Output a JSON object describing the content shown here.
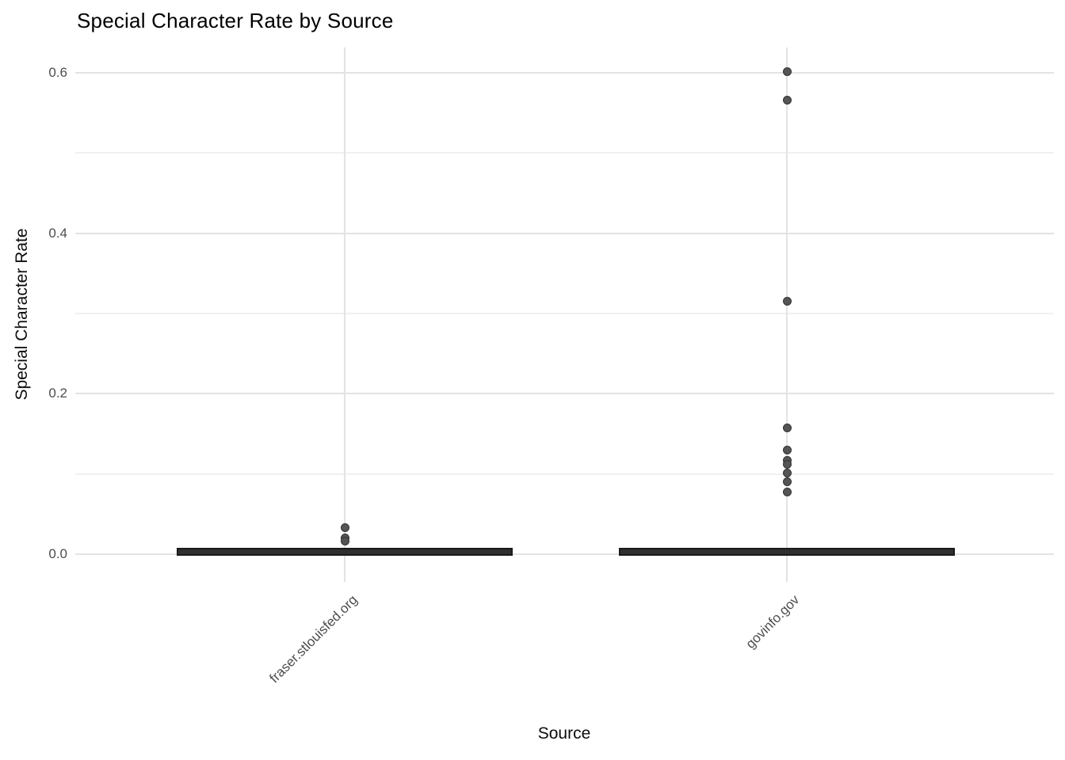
{
  "chart_data": {
    "type": "boxplot",
    "title": "Special Character Rate by Source",
    "xlabel": "Source",
    "ylabel": "Special Character Rate",
    "categories": [
      "fraser.stlouisfed.org",
      "govinfo.gov"
    ],
    "ylim": [
      -0.012,
      0.635
    ],
    "y_major_ticks": [
      0.0,
      0.2,
      0.4,
      0.6
    ],
    "y_tick_labels": [
      "0.0",
      "0.2",
      "0.4",
      "0.6"
    ],
    "y_minor_ticks": [
      0.1,
      0.3,
      0.5
    ],
    "grid": "horizontal major+minor lines, one vertical line per category",
    "legend_position": "none",
    "series": [
      {
        "name": "fraser.stlouisfed.org",
        "box": {
          "whisker_low": 0.0,
          "q1": 0.0,
          "median": 0.003,
          "q3": 0.006,
          "whisker_high": 0.006
        },
        "outliers": [
          0.033,
          0.02,
          0.016
        ]
      },
      {
        "name": "govinfo.gov",
        "box": {
          "whisker_low": 0.0,
          "q1": 0.0,
          "median": 0.003,
          "q3": 0.006,
          "whisker_high": 0.006
        },
        "outliers": [
          0.601,
          0.566,
          0.315,
          0.157,
          0.13,
          0.117,
          0.112,
          0.101,
          0.09,
          0.077
        ]
      }
    ],
    "colors": {
      "background": "#ffffff",
      "title": "#000000",
      "axis_title": "#0d0d0d",
      "tick_label": "#4d4d4d",
      "grid_major": "#e3e3e3",
      "grid_minor": "#f0f0f0",
      "box_fill": "#2f2f2f",
      "box_border": "#1a1a1a",
      "point_fill": "#555555",
      "point_border": "#333333"
    }
  }
}
